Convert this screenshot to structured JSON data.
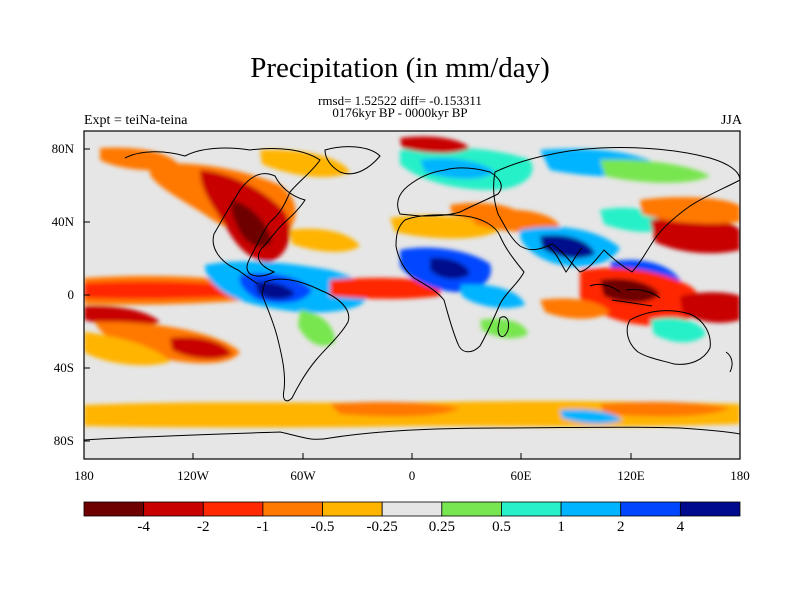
{
  "title": "Precipitation (in mm/day)",
  "stats": "rmsd= 1.52522 diff= -0.153311",
  "period": "0176kyr BP - 0000kyr BP",
  "experiment": "Expt = teiNa-teina",
  "season": "JJA",
  "lat_axis": [
    "80N",
    "40N",
    "0",
    "40S",
    "80S"
  ],
  "lon_axis": [
    "180",
    "120W",
    "60W",
    "0",
    "60E",
    "120E",
    "180"
  ],
  "colorbar": {
    "labels": [
      "-4",
      "-2",
      "-1",
      "-0.5",
      "-0.25",
      "0.25",
      "0.5",
      "1",
      "2",
      "4"
    ],
    "colors": [
      "#6e0000",
      "#c80000",
      "#ff2800",
      "#ff7800",
      "#ffb400",
      "#e6e6e6",
      "#78e650",
      "#28f0c8",
      "#00b4ff",
      "#0046ff",
      "#000a8c"
    ]
  },
  "map": {
    "projection": "cylindrical equidistant",
    "background_color": "#e6e6e6",
    "coastline_color": "#000000"
  }
}
